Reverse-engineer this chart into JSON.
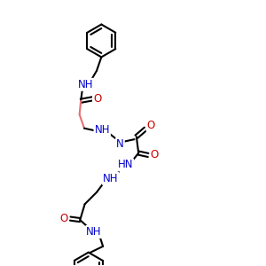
{
  "background_color": "#ffffff",
  "bond_color": "#000000",
  "nitrogen_color": "#0000cc",
  "oxygen_color": "#cc0000",
  "highlight_color": "#e87070",
  "line_width": 1.5,
  "font_size_atom": 8.5,
  "fig_width": 3.0,
  "fig_height": 3.0,
  "dpi": 100,
  "xlim": [
    0,
    10
  ],
  "ylim": [
    0,
    10
  ]
}
